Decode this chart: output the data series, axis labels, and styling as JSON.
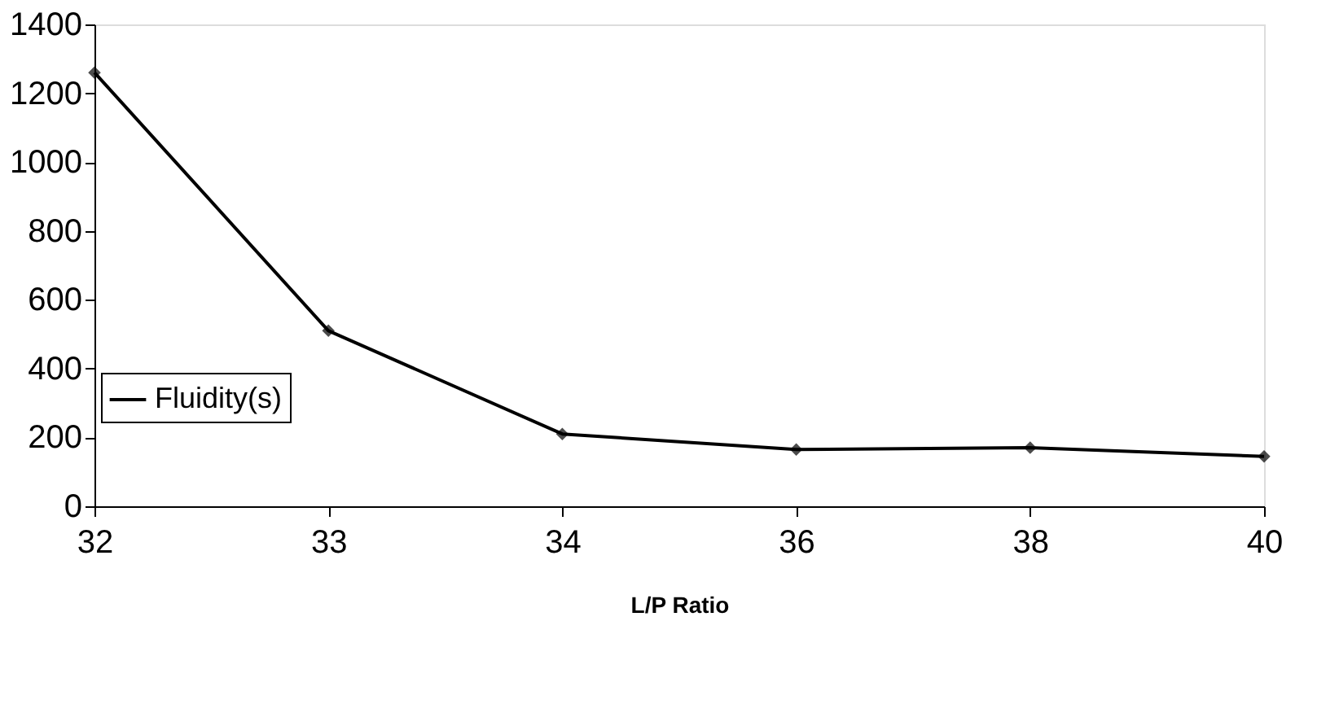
{
  "chart_data": {
    "type": "line",
    "xlabel": "L/P Ratio",
    "categories": [
      "32",
      "33",
      "34",
      "36",
      "38",
      "40"
    ],
    "series": [
      {
        "name": "Fluidity(s)",
        "color": "#000000",
        "values": [
          1260,
          510,
          210,
          165,
          170,
          145
        ]
      }
    ],
    "ylim": [
      0,
      1400
    ],
    "yticks": [
      0,
      200,
      400,
      600,
      800,
      1000,
      1200,
      1400
    ],
    "grid": false,
    "legend": "left",
    "marker": "diamond",
    "line_style": "solid"
  }
}
